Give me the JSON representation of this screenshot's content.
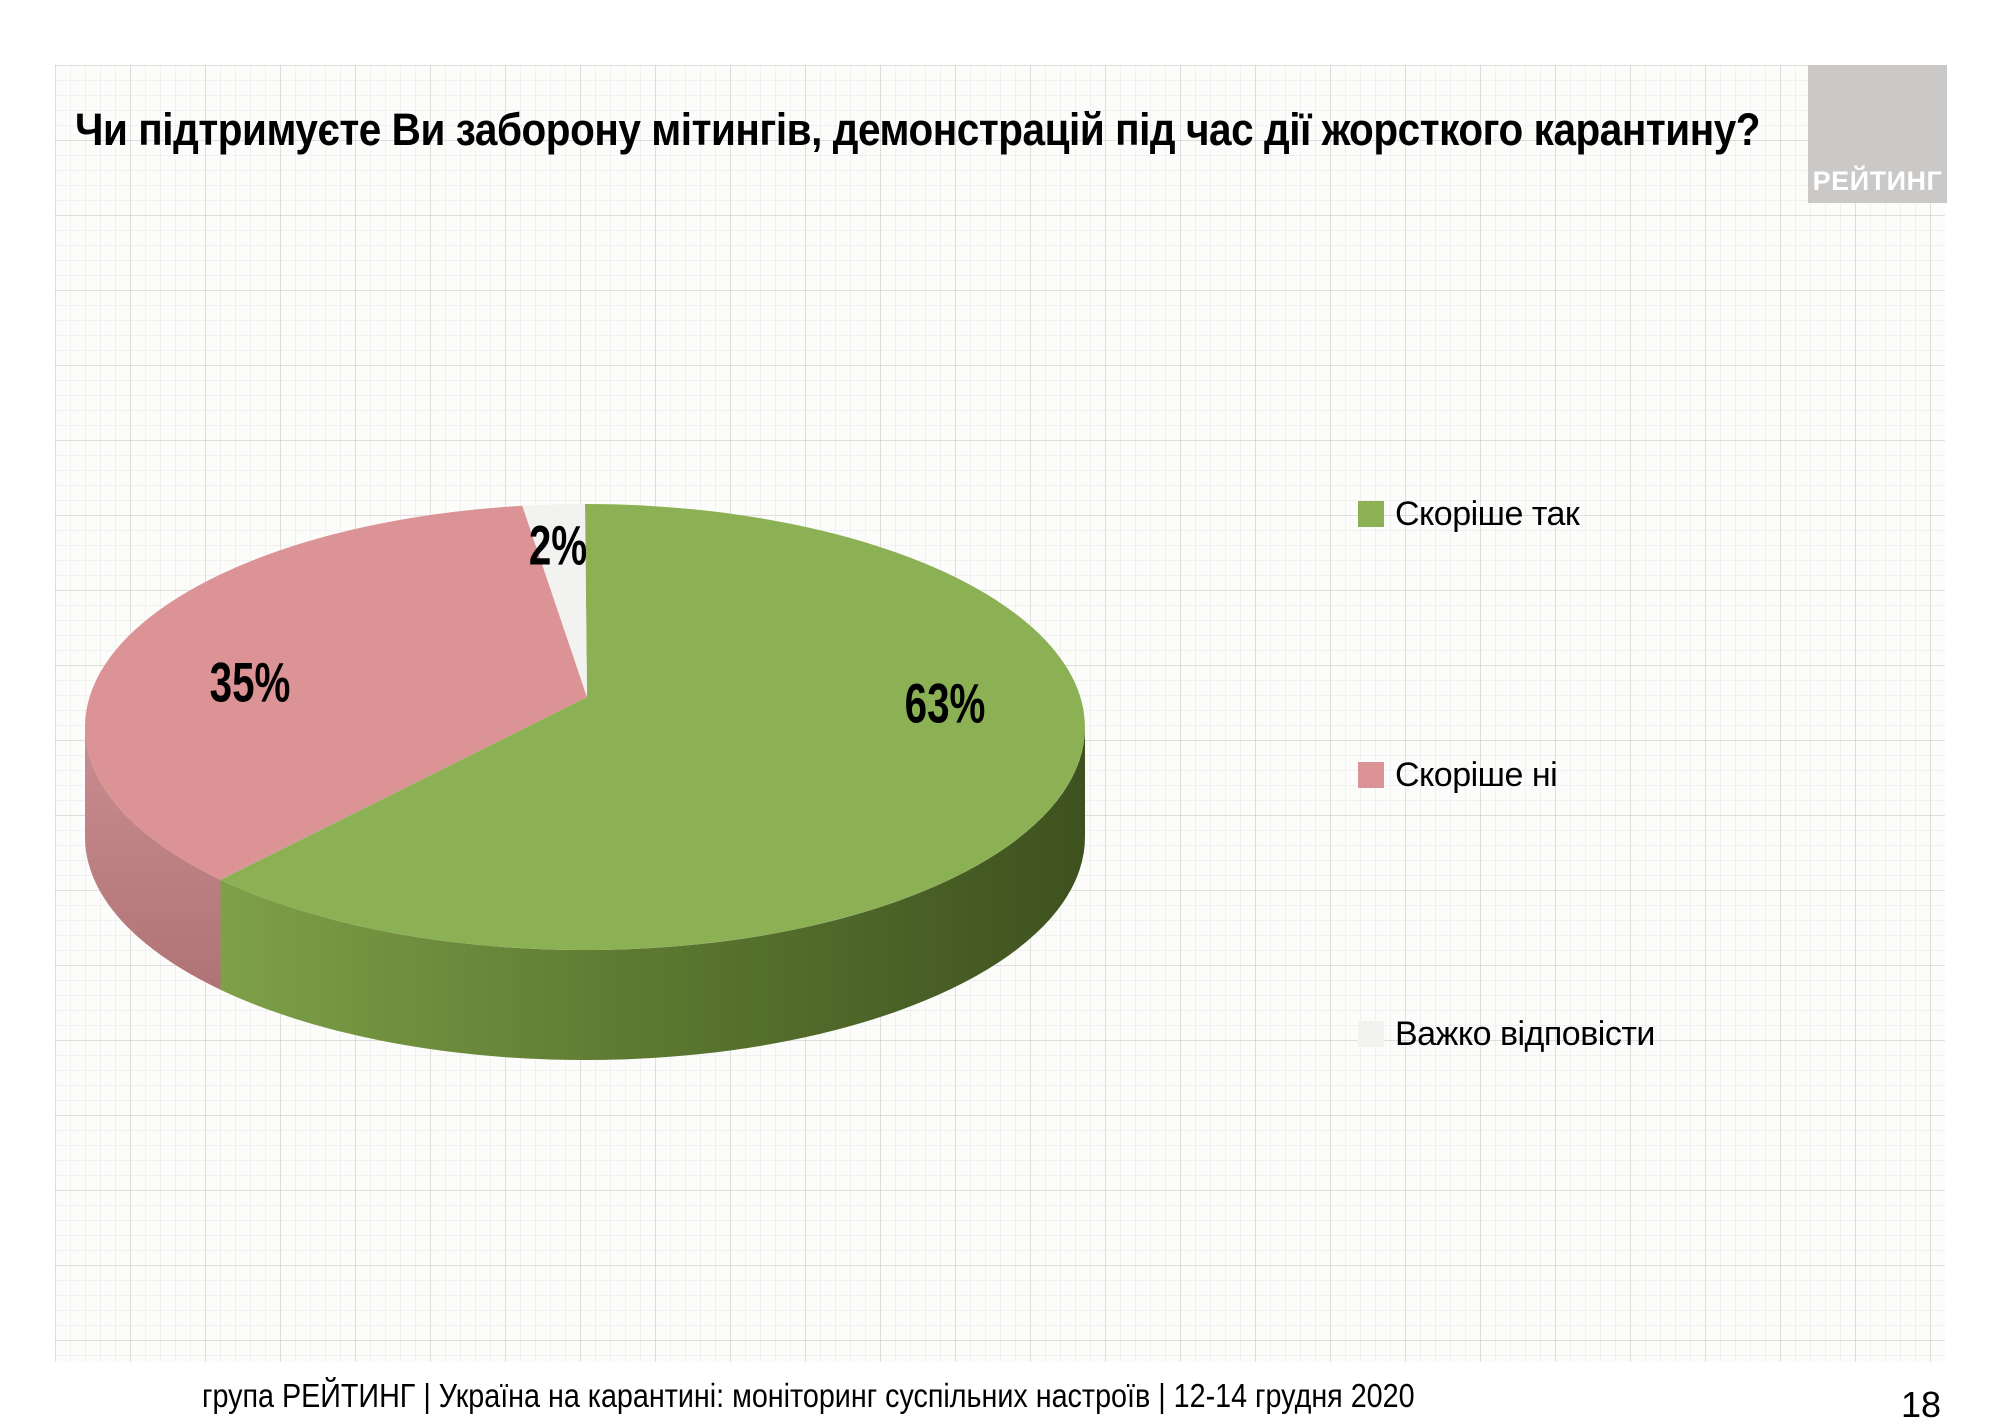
{
  "slide": {
    "title": "Чи підтримуєте Ви заборону мітингів, демонстрацій під час дії жорсткого карантину?",
    "logo_text": "РЕЙТИНГ",
    "footer_text": "група РЕЙТИНГ | Україна на карантині: моніторинг суспільних настроїв | 12-14 грудня 2020",
    "page_number": "18"
  },
  "chart_data": {
    "type": "pie",
    "style": "3d",
    "legend_position": "right",
    "start_angle_deg": 0,
    "direction": "clockwise",
    "title": "Чи підтримуєте Ви заборону мітингів, демонстрацій під час дії жорсткого карантину?",
    "categories": [
      "Скоріше так",
      "Скоріше ні",
      "Важко відповісти"
    ],
    "values": [
      63,
      35,
      2
    ],
    "slices": [
      {
        "label": "Скоріше так",
        "value": 63,
        "display": "63%",
        "color": "#8CB054",
        "side_colors": [
          "#7FA049",
          "#5C7830",
          "#3E511F"
        ]
      },
      {
        "label": "Скоріше ні",
        "value": 35,
        "display": "35%",
        "color": "#DB9396",
        "side_colors": [
          "#C98E91",
          "#A96B6E"
        ]
      },
      {
        "label": "Важко відповісти",
        "value": 2,
        "display": "2%",
        "color": "#F2F2F0",
        "side_colors": []
      }
    ]
  }
}
